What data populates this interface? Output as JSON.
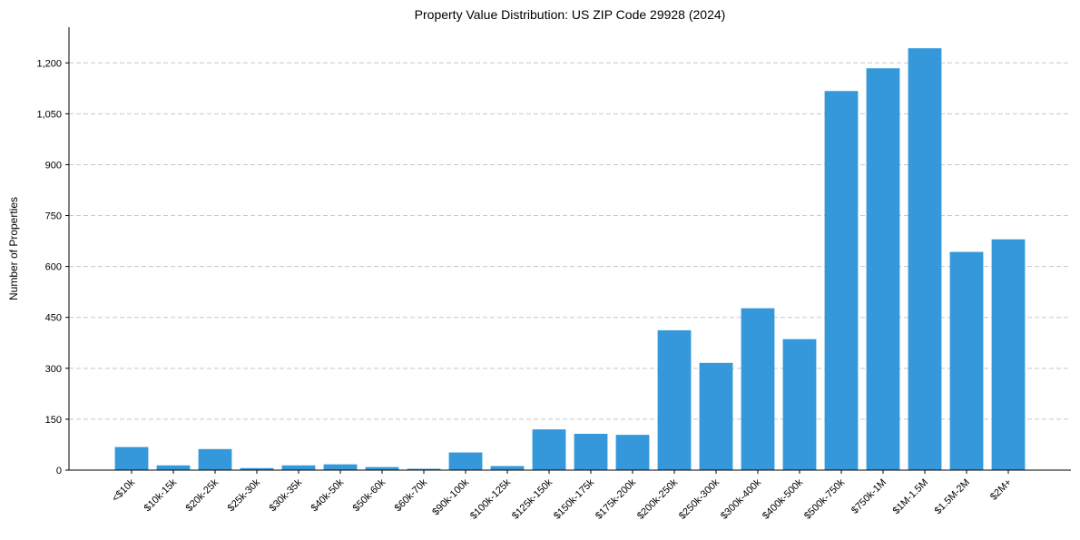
{
  "chart_data": {
    "type": "bar",
    "title": "Property Value Distribution: US ZIP Code 29928 (2024)",
    "xlabel": "",
    "ylabel": "Number of Properties",
    "categories": [
      "<$10k",
      "$10k-15k",
      "$20k-25k",
      "$25k-30k",
      "$30k-35k",
      "$40k-50k",
      "$50k-60k",
      "$60k-70k",
      "$90k-100k",
      "$100k-125k",
      "$125k-150k",
      "$150k-175k",
      "$175k-200k",
      "$200k-250k",
      "$250k-300k",
      "$300k-400k",
      "$400k-500k",
      "$500k-750k",
      "$750k-1M",
      "$1M-1.5M",
      "$1.5M-2M",
      "$2M+"
    ],
    "values": [
      68,
      14,
      62,
      6,
      14,
      17,
      9,
      4,
      52,
      12,
      120,
      107,
      104,
      412,
      316,
      477,
      386,
      1117,
      1184,
      1243,
      643,
      680
    ],
    "ylim": [
      0,
      1305
    ],
    "yticks": [
      0,
      150,
      300,
      450,
      600,
      750,
      900,
      1050,
      1200
    ],
    "ytick_labels": [
      "0",
      "150",
      "300",
      "450",
      "600",
      "750",
      "900",
      "1,050",
      "1,200"
    ],
    "grid": "y dashed",
    "bar_color": "#3498db"
  }
}
